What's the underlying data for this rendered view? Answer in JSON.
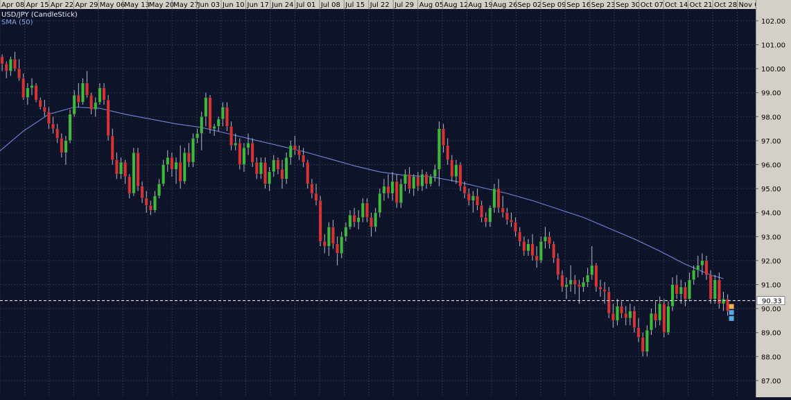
{
  "chart_data": {
    "type": "candlestick",
    "title": "USD/JPY (CandleStick)",
    "indicator_label": "SMA (50)",
    "x_ticks": [
      "Apr 08",
      "Apr 15",
      "Apr 22",
      "Apr 29",
      "May 06",
      "May 13",
      "May 20",
      "May 27",
      "Jun 03",
      "Jun 10",
      "Jun 17",
      "Jun 24",
      "Jul 01",
      "Jul 08",
      "Jul 15",
      "Jul 22",
      "Jul 29",
      "Aug 05",
      "Aug 12",
      "Aug 19",
      "Aug 26",
      "Sep 02",
      "Sep 09",
      "Sep 16",
      "Sep 23",
      "Sep 30",
      "Oct 07",
      "Oct 14",
      "Oct 21",
      "Oct 28",
      "Nov 0"
    ],
    "y_ticks": [
      "102.00",
      "101.00",
      "100.00",
      "99.00",
      "98.00",
      "97.00",
      "96.00",
      "95.00",
      "94.00",
      "93.00",
      "92.00",
      "91.00",
      "90.00",
      "89.00",
      "88.00",
      "87.00"
    ],
    "ylim": [
      86.6,
      102.7
    ],
    "current_price_label": "90.33",
    "current_price": 90.33,
    "grid": true,
    "colors": {
      "background": "#0d1329",
      "grid": "#2c3650",
      "up": "#3dba3d",
      "down": "#d63333",
      "wick": "#b8bcc8",
      "sma": "#6f88d8",
      "axis_panel": "#d4d0c8",
      "price_line": "#ffffff",
      "price_label_bg": "#ffffff",
      "marker_orange": "#f4b64a",
      "marker_blue": "#5aa9e6"
    },
    "candles_ohlc": [
      [
        100.3,
        100.8,
        99.8,
        100.5
      ],
      [
        100.5,
        100.6,
        99.9,
        100.2
      ],
      [
        100.2,
        100.3,
        99.6,
        99.9
      ],
      [
        99.9,
        100.5,
        99.7,
        100.4
      ],
      [
        100.4,
        100.7,
        99.9,
        100.0
      ],
      [
        100.0,
        100.4,
        99.5,
        99.6
      ],
      [
        99.6,
        99.8,
        98.7,
        98.8
      ],
      [
        98.8,
        99.4,
        98.5,
        99.2
      ],
      [
        99.2,
        99.6,
        98.9,
        99.3
      ],
      [
        99.3,
        99.4,
        98.6,
        98.7
      ],
      [
        98.7,
        98.8,
        98.3,
        98.4
      ],
      [
        98.4,
        98.7,
        98.0,
        98.2
      ],
      [
        98.2,
        98.4,
        97.5,
        97.7
      ],
      [
        97.7,
        98.0,
        97.3,
        97.5
      ],
      [
        97.5,
        97.7,
        96.9,
        97.1
      ],
      [
        97.1,
        97.3,
        96.3,
        96.5
      ],
      [
        96.5,
        97.2,
        96.0,
        97.0
      ],
      [
        97.0,
        98.3,
        96.9,
        98.1
      ],
      [
        98.1,
        99.1,
        98.0,
        98.9
      ],
      [
        98.9,
        99.4,
        98.4,
        98.6
      ],
      [
        98.6,
        99.6,
        98.5,
        99.4
      ],
      [
        99.4,
        99.9,
        98.8,
        98.9
      ],
      [
        98.9,
        99.0,
        98.1,
        98.3
      ],
      [
        98.3,
        98.8,
        98.0,
        98.6
      ],
      [
        98.6,
        99.4,
        98.5,
        99.2
      ],
      [
        99.2,
        99.4,
        98.5,
        98.7
      ],
      [
        98.7,
        98.9,
        97.0,
        97.2
      ],
      [
        97.2,
        97.5,
        96.0,
        96.2
      ],
      [
        96.2,
        96.5,
        95.4,
        95.6
      ],
      [
        95.6,
        96.3,
        95.4,
        96.1
      ],
      [
        96.1,
        96.2,
        95.2,
        95.5
      ],
      [
        95.5,
        95.6,
        94.6,
        94.8
      ],
      [
        94.8,
        96.7,
        94.7,
        96.5
      ],
      [
        96.5,
        96.7,
        94.9,
        95.1
      ],
      [
        95.1,
        95.3,
        94.4,
        94.6
      ],
      [
        94.6,
        94.9,
        94.0,
        94.3
      ],
      [
        94.3,
        94.5,
        93.9,
        94.1
      ],
      [
        94.1,
        94.9,
        94.0,
        94.7
      ],
      [
        94.7,
        95.4,
        94.6,
        95.2
      ],
      [
        95.2,
        96.2,
        95.1,
        96.0
      ],
      [
        96.0,
        96.6,
        95.7,
        96.3
      ],
      [
        96.3,
        96.5,
        95.5,
        95.8
      ],
      [
        95.8,
        96.3,
        95.2,
        96.1
      ],
      [
        96.1,
        96.8,
        95.0,
        95.3
      ],
      [
        95.3,
        96.7,
        95.2,
        96.5
      ],
      [
        96.5,
        96.9,
        95.9,
        96.1
      ],
      [
        96.1,
        97.3,
        95.9,
        97.1
      ],
      [
        97.1,
        97.5,
        96.9,
        97.3
      ],
      [
        97.3,
        98.2,
        96.6,
        98.0
      ],
      [
        98.0,
        99.0,
        97.6,
        98.8
      ],
      [
        98.8,
        98.9,
        97.3,
        97.5
      ],
      [
        97.5,
        97.7,
        97.2,
        97.6
      ],
      [
        97.6,
        98.0,
        97.4,
        97.9
      ],
      [
        97.9,
        98.6,
        97.6,
        98.4
      ],
      [
        98.4,
        98.6,
        97.4,
        97.6
      ],
      [
        97.6,
        97.8,
        96.6,
        96.8
      ],
      [
        96.8,
        97.3,
        96.6,
        96.9
      ],
      [
        96.9,
        97.1,
        95.8,
        96.0
      ],
      [
        96.0,
        96.9,
        95.7,
        96.7
      ],
      [
        96.7,
        97.3,
        96.4,
        96.9
      ],
      [
        96.9,
        97.1,
        95.9,
        96.1
      ],
      [
        96.1,
        96.3,
        95.4,
        95.6
      ],
      [
        95.6,
        96.3,
        95.4,
        96.1
      ],
      [
        96.1,
        96.3,
        95.0,
        95.2
      ],
      [
        95.2,
        95.9,
        94.9,
        95.7
      ],
      [
        95.7,
        96.4,
        95.5,
        96.2
      ],
      [
        96.2,
        96.3,
        95.6,
        95.8
      ],
      [
        95.8,
        96.2,
        95.0,
        95.4
      ],
      [
        95.4,
        96.5,
        95.2,
        96.3
      ],
      [
        96.3,
        97.0,
        96.0,
        96.8
      ],
      [
        96.8,
        97.2,
        96.4,
        96.6
      ],
      [
        96.6,
        96.8,
        96.2,
        96.4
      ],
      [
        96.4,
        96.7,
        95.9,
        96.1
      ],
      [
        96.1,
        96.2,
        95.0,
        95.2
      ],
      [
        95.2,
        95.4,
        94.6,
        94.8
      ],
      [
        94.8,
        95.2,
        94.3,
        94.5
      ],
      [
        94.5,
        94.7,
        92.6,
        92.8
      ],
      [
        92.8,
        93.1,
        92.3,
        92.6
      ],
      [
        92.6,
        93.6,
        92.2,
        93.4
      ],
      [
        93.4,
        93.7,
        92.5,
        92.7
      ],
      [
        92.7,
        93.0,
        91.8,
        92.3
      ],
      [
        92.3,
        93.2,
        92.1,
        93.0
      ],
      [
        93.0,
        93.6,
        92.8,
        93.4
      ],
      [
        93.4,
        94.1,
        93.3,
        93.9
      ],
      [
        93.9,
        94.2,
        93.4,
        93.6
      ],
      [
        93.6,
        94.1,
        93.3,
        93.8
      ],
      [
        93.8,
        94.6,
        93.6,
        94.4
      ],
      [
        94.4,
        94.6,
        93.6,
        93.8
      ],
      [
        93.8,
        94.0,
        93.0,
        93.4
      ],
      [
        93.4,
        94.2,
        93.2,
        94.0
      ],
      [
        94.0,
        95.0,
        93.8,
        94.8
      ],
      [
        94.8,
        95.4,
        94.5,
        95.1
      ],
      [
        95.1,
        95.6,
        94.6,
        94.8
      ],
      [
        94.8,
        95.7,
        94.5,
        95.3
      ],
      [
        95.3,
        95.6,
        94.2,
        94.4
      ],
      [
        94.4,
        95.4,
        94.2,
        95.2
      ],
      [
        95.2,
        95.8,
        94.9,
        95.6
      ],
      [
        95.6,
        95.9,
        94.8,
        95.0
      ],
      [
        95.0,
        95.6,
        94.7,
        95.5
      ],
      [
        95.5,
        95.7,
        94.9,
        95.1
      ],
      [
        95.1,
        95.8,
        94.9,
        95.6
      ],
      [
        95.6,
        95.7,
        95.0,
        95.2
      ],
      [
        95.2,
        95.6,
        95.1,
        95.5
      ],
      [
        95.5,
        96.0,
        95.3,
        95.8
      ],
      [
        95.8,
        97.8,
        95.1,
        97.5
      ],
      [
        97.5,
        97.7,
        96.5,
        96.8
      ],
      [
        96.8,
        97.1,
        96.0,
        96.2
      ],
      [
        96.2,
        96.4,
        95.3,
        95.5
      ],
      [
        95.5,
        96.2,
        95.2,
        96.0
      ],
      [
        96.0,
        96.1,
        94.9,
        95.1
      ],
      [
        95.1,
        95.3,
        94.6,
        94.8
      ],
      [
        94.8,
        95.0,
        94.3,
        94.5
      ],
      [
        94.5,
        94.9,
        94.0,
        94.7
      ],
      [
        94.7,
        95.0,
        94.1,
        94.3
      ],
      [
        94.3,
        94.5,
        93.6,
        93.8
      ],
      [
        93.8,
        94.0,
        93.4,
        93.6
      ],
      [
        93.6,
        94.3,
        93.4,
        94.2
      ],
      [
        94.2,
        95.2,
        94.0,
        95.0
      ],
      [
        95.0,
        95.4,
        94.0,
        94.2
      ],
      [
        94.2,
        94.7,
        93.8,
        94.0
      ],
      [
        94.0,
        94.2,
        93.5,
        93.7
      ],
      [
        93.7,
        94.0,
        93.4,
        93.6
      ],
      [
        93.6,
        93.8,
        93.0,
        93.2
      ],
      [
        93.2,
        93.4,
        92.6,
        92.8
      ],
      [
        92.8,
        93.0,
        92.2,
        92.4
      ],
      [
        92.4,
        92.9,
        92.2,
        92.7
      ],
      [
        92.7,
        93.1,
        92.0,
        92.2
      ],
      [
        92.2,
        92.6,
        91.7,
        92.0
      ],
      [
        92.0,
        93.0,
        91.9,
        92.8
      ],
      [
        92.8,
        93.4,
        92.5,
        93.0
      ],
      [
        93.0,
        93.2,
        92.5,
        92.7
      ],
      [
        92.7,
        92.8,
        91.9,
        92.1
      ],
      [
        92.1,
        92.3,
        91.2,
        91.4
      ],
      [
        91.4,
        91.6,
        90.7,
        90.9
      ],
      [
        90.9,
        91.3,
        90.4,
        91.0
      ],
      [
        91.0,
        91.8,
        90.7,
        91.2
      ],
      [
        91.2,
        91.4,
        90.6,
        91.0
      ],
      [
        91.0,
        91.2,
        90.2,
        90.9
      ],
      [
        90.9,
        91.3,
        90.7,
        91.1
      ],
      [
        91.1,
        91.7,
        90.9,
        91.4
      ],
      [
        91.4,
        92.6,
        91.2,
        91.8
      ],
      [
        91.8,
        91.9,
        90.7,
        90.9
      ],
      [
        90.9,
        91.2,
        90.5,
        90.8
      ],
      [
        90.8,
        91.1,
        90.2,
        90.7
      ],
      [
        90.7,
        90.9,
        89.6,
        89.8
      ],
      [
        89.8,
        90.2,
        89.2,
        89.5
      ],
      [
        89.5,
        90.4,
        89.3,
        90.1
      ],
      [
        90.1,
        90.3,
        89.6,
        89.8
      ],
      [
        89.8,
        90.1,
        89.3,
        89.6
      ],
      [
        89.6,
        90.2,
        89.3,
        89.9
      ],
      [
        89.9,
        90.1,
        89.0,
        89.2
      ],
      [
        89.2,
        89.6,
        88.6,
        88.8
      ],
      [
        88.8,
        89.0,
        88.0,
        88.2
      ],
      [
        88.2,
        89.3,
        88.0,
        89.1
      ],
      [
        89.1,
        90.0,
        88.9,
        89.8
      ],
      [
        89.8,
        90.3,
        89.2,
        89.5
      ],
      [
        89.5,
        90.5,
        89.3,
        90.2
      ],
      [
        90.2,
        90.4,
        88.8,
        89.0
      ],
      [
        89.0,
        90.3,
        88.9,
        90.1
      ],
      [
        90.1,
        91.3,
        89.9,
        91.0
      ],
      [
        91.0,
        91.4,
        90.4,
        90.6
      ],
      [
        90.6,
        91.2,
        90.2,
        90.9
      ],
      [
        90.9,
        91.1,
        90.1,
        90.4
      ],
      [
        90.4,
        91.5,
        90.3,
        91.2
      ],
      [
        91.2,
        91.8,
        91.0,
        91.6
      ],
      [
        91.6,
        92.2,
        91.3,
        91.8
      ],
      [
        91.8,
        92.3,
        91.4,
        92.0
      ],
      [
        92.0,
        92.2,
        91.2,
        91.4
      ],
      [
        91.4,
        91.6,
        90.2,
        90.4
      ],
      [
        90.4,
        91.4,
        90.2,
        91.2
      ],
      [
        91.2,
        91.5,
        90.0,
        90.2
      ],
      [
        90.2,
        90.7,
        89.9,
        90.4
      ],
      [
        90.4,
        90.6,
        89.7,
        89.9
      ]
    ],
    "sma": [
      [
        0,
        96.5
      ],
      [
        6,
        97.4
      ],
      [
        12,
        98.1
      ],
      [
        18,
        98.4
      ],
      [
        24,
        98.35
      ],
      [
        30,
        98.1
      ],
      [
        36,
        97.9
      ],
      [
        42,
        97.7
      ],
      [
        48,
        97.55
      ],
      [
        54,
        97.3
      ],
      [
        60,
        97.05
      ],
      [
        66,
        96.8
      ],
      [
        72,
        96.55
      ],
      [
        78,
        96.25
      ],
      [
        84,
        95.95
      ],
      [
        90,
        95.7
      ],
      [
        96,
        95.55
      ],
      [
        102,
        95.5
      ],
      [
        108,
        95.3
      ],
      [
        114,
        95.05
      ],
      [
        120,
        94.8
      ],
      [
        126,
        94.5
      ],
      [
        132,
        94.15
      ],
      [
        138,
        93.8
      ],
      [
        144,
        93.35
      ],
      [
        150,
        92.9
      ],
      [
        156,
        92.4
      ],
      [
        162,
        91.85
      ],
      [
        168,
        91.4
      ],
      [
        171,
        91.25
      ]
    ]
  }
}
